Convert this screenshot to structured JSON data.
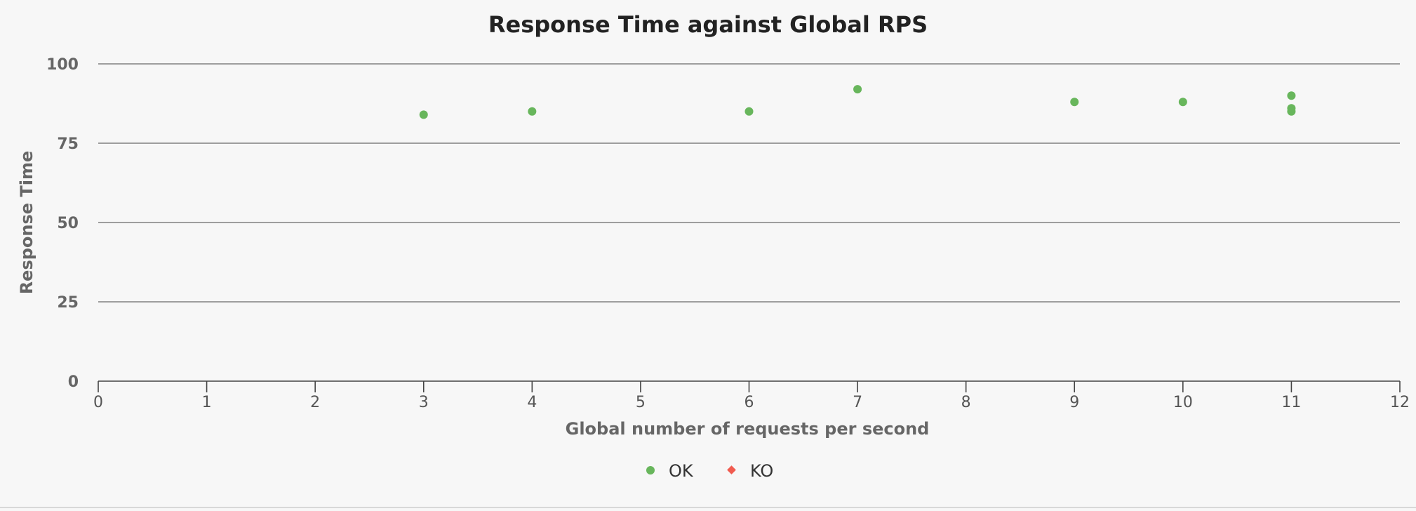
{
  "chart_data": {
    "type": "scatter",
    "title": "Response Time against Global RPS",
    "xlabel": "Global number of requests per second",
    "ylabel": "Response Time",
    "xlim": [
      0,
      12
    ],
    "ylim": [
      0,
      100
    ],
    "xticks": [
      "0",
      "1",
      "2",
      "3",
      "4",
      "5",
      "6",
      "7",
      "8",
      "9",
      "10",
      "11",
      "12"
    ],
    "yticks": [
      "0",
      "25",
      "50",
      "75",
      "100"
    ],
    "grid": "horizontal",
    "legend": "bottom-center",
    "series": [
      {
        "name": "OK",
        "marker": "circle",
        "color": "#68b65c",
        "points": [
          {
            "x": 3,
            "y": 84
          },
          {
            "x": 4,
            "y": 85
          },
          {
            "x": 6,
            "y": 85
          },
          {
            "x": 7,
            "y": 92
          },
          {
            "x": 9,
            "y": 88
          },
          {
            "x": 10,
            "y": 88
          },
          {
            "x": 11,
            "y": 90
          },
          {
            "x": 11,
            "y": 86
          },
          {
            "x": 11,
            "y": 85
          }
        ]
      },
      {
        "name": "KO",
        "marker": "diamond",
        "color": "#f15b4f",
        "points": []
      }
    ]
  }
}
